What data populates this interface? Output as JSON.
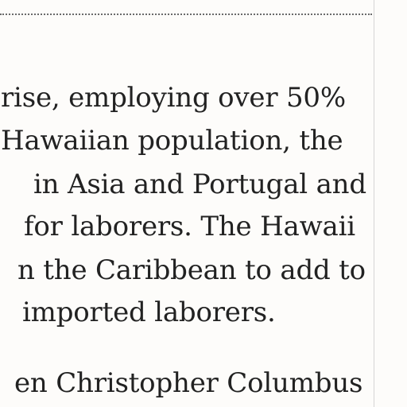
{
  "page": {
    "paragraph_1": {
      "lines": [
        "rise, employing over 50%",
        "Hawaiian population, the",
        "in Asia and Portugal and",
        "for laborers. The Hawaii",
        "n the Caribbean to add to",
        "imported laborers."
      ]
    },
    "paragraph_2": {
      "lines": [
        "en Christopher Columbus"
      ]
    }
  }
}
